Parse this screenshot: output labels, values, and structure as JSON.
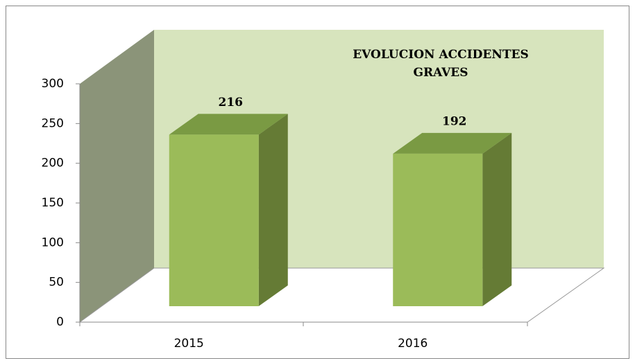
{
  "chart_data": {
    "type": "bar3d",
    "title": "EVOLUCION ACCIDENTES GRAVES",
    "categories": [
      "2015",
      "2016"
    ],
    "values": [
      216,
      192
    ],
    "color": "#9bbb59",
    "ylim": [
      0,
      300
    ],
    "yticks": [
      0,
      50,
      100,
      150,
      200,
      250,
      300
    ]
  }
}
